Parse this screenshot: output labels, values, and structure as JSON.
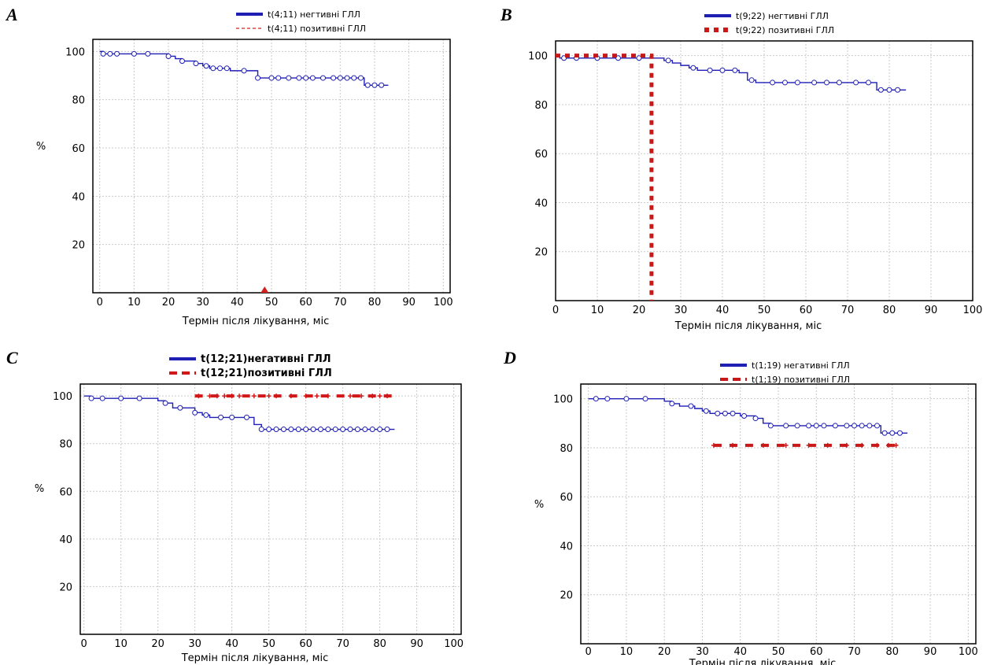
{
  "chart_data": [
    {
      "panel": "A",
      "type": "line",
      "xlabel": "Термін після лікування, міс",
      "ylabel": "%",
      "xlim": [
        -2,
        102
      ],
      "ylim": [
        0,
        105
      ],
      "xticks": [
        "0",
        "10",
        "20",
        "30",
        "40",
        "50",
        "60",
        "70",
        "80",
        "90",
        "100"
      ],
      "yticks": [
        "20",
        "40",
        "60",
        "80",
        "100"
      ],
      "grid": true,
      "legend_position": "top",
      "series": [
        {
          "name": "t(4;11) негтивні ГЛЛ",
          "color": "#1f1fb4",
          "style": "solid",
          "x": [
            0,
            1,
            2,
            18,
            20,
            22,
            24,
            26,
            28,
            30,
            32,
            34,
            38,
            40,
            44,
            46,
            48,
            76,
            77,
            84
          ],
          "y": [
            100,
            99,
            99,
            99,
            98,
            97,
            96,
            96,
            95,
            94,
            93,
            93,
            92,
            92,
            92,
            89,
            89,
            89,
            86,
            86
          ],
          "censored_x": [
            1,
            3,
            5,
            10,
            14,
            20,
            24,
            28,
            31,
            33,
            35,
            37,
            42,
            46,
            50,
            52,
            55,
            58,
            60,
            62,
            65,
            68,
            70,
            72,
            74,
            76,
            78,
            80,
            82
          ]
        },
        {
          "name": "t(4;11) позитивні ГЛЛ",
          "color": "#d02020",
          "style": "dashed",
          "x": [
            48
          ],
          "y": [
            0
          ]
        }
      ]
    },
    {
      "panel": "B",
      "type": "line",
      "xlabel": "Термін після лікування, міс",
      "ylabel": "",
      "xlim": [
        0,
        100
      ],
      "ylim": [
        0,
        106
      ],
      "xticks": [
        "0",
        "10",
        "20",
        "30",
        "40",
        "50",
        "60",
        "70",
        "80",
        "90",
        "100"
      ],
      "yticks": [
        "20",
        "40",
        "60",
        "80",
        "100"
      ],
      "grid": true,
      "legend_position": "top",
      "series": [
        {
          "name": "t(9;22) негтивні ГЛЛ",
          "color": "#1f1fb4",
          "style": "solid",
          "x": [
            0,
            1,
            18,
            20,
            26,
            28,
            30,
            32,
            34,
            36,
            44,
            46,
            48,
            76,
            77,
            84
          ],
          "y": [
            100,
            99,
            99,
            99,
            98,
            97,
            96,
            95,
            94,
            94,
            93,
            90,
            89,
            89,
            86,
            86
          ],
          "censored_x": [
            2,
            5,
            10,
            15,
            20,
            27,
            33,
            37,
            40,
            43,
            47,
            52,
            55,
            58,
            62,
            65,
            68,
            72,
            75,
            78,
            80,
            82
          ]
        },
        {
          "name": "t(9;22) позитивні ГЛЛ",
          "color": "#c81818",
          "style": "dotted",
          "x": [
            0,
            23,
            23
          ],
          "y": [
            100,
            100,
            0
          ]
        }
      ]
    },
    {
      "panel": "C",
      "type": "line",
      "xlabel": "Термін після лікування, міс",
      "ylabel": "%",
      "xlim": [
        -1,
        102
      ],
      "ylim": [
        0,
        105
      ],
      "xticks": [
        "0",
        "10",
        "20",
        "30",
        "40",
        "50",
        "60",
        "70",
        "80",
        "90",
        "100"
      ],
      "yticks": [
        "20",
        "40",
        "60",
        "80",
        "100"
      ],
      "grid": true,
      "legend_position": "top",
      "series": [
        {
          "name": "t(12;21)негативні ГЛЛ",
          "color": "#1f1fb4",
          "style": "solid",
          "x": [
            0,
            1,
            2,
            18,
            20,
            22,
            24,
            28,
            30,
            32,
            34,
            44,
            46,
            48,
            84
          ],
          "y": [
            100,
            100,
            99,
            99,
            98,
            97,
            95,
            95,
            93,
            92,
            91,
            91,
            88,
            86,
            86
          ],
          "censored_x": [
            2,
            5,
            10,
            15,
            22,
            26,
            30,
            33,
            37,
            40,
            44,
            48,
            50,
            52,
            54,
            56,
            58,
            60,
            62,
            64,
            66,
            68,
            70,
            72,
            74,
            76,
            78,
            80,
            82
          ]
        },
        {
          "name": "t(12;21)позитивні ГЛЛ",
          "color": "#d01818",
          "style": "dashed",
          "x": [
            30,
            84
          ],
          "y": [
            100,
            100
          ],
          "censored_x": [
            31,
            34,
            36,
            38,
            40,
            42,
            46,
            50,
            52,
            56,
            60,
            63,
            66,
            72,
            75,
            78,
            80,
            82
          ]
        }
      ]
    },
    {
      "panel": "D",
      "type": "line",
      "xlabel": "Термін після лікування, міс",
      "ylabel": "%",
      "xlim": [
        -2,
        102
      ],
      "ylim": [
        0,
        106
      ],
      "xticks": [
        "0",
        "10",
        "20",
        "30",
        "40",
        "50",
        "60",
        "70",
        "80",
        "90",
        "100"
      ],
      "yticks": [
        "20",
        "40",
        "60",
        "80",
        "100"
      ],
      "grid": true,
      "legend_position": "top",
      "series": [
        {
          "name": "t(1;19) негативні ГЛЛ",
          "color": "#1f1fb4",
          "style": "solid",
          "x": [
            0,
            1,
            18,
            20,
            22,
            24,
            26,
            28,
            30,
            32,
            38,
            40,
            44,
            46,
            48,
            76,
            77,
            84
          ],
          "y": [
            100,
            100,
            100,
            99,
            98,
            97,
            97,
            96,
            95,
            94,
            94,
            93,
            92,
            90,
            89,
            89,
            86,
            86
          ],
          "censored_x": [
            2,
            5,
            10,
            15,
            22,
            27,
            31,
            34,
            36,
            38,
            41,
            44,
            48,
            52,
            55,
            58,
            60,
            62,
            65,
            68,
            70,
            72,
            74,
            76,
            78,
            80,
            82
          ]
        },
        {
          "name": "t(1;19) позитивні ГЛЛ",
          "color": "#c81818",
          "style": "dashed",
          "x": [
            33,
            81
          ],
          "y": [
            81,
            81
          ],
          "censored_x": [
            33,
            38,
            46,
            52,
            58,
            63,
            68,
            72,
            76,
            79,
            81
          ]
        }
      ]
    }
  ]
}
